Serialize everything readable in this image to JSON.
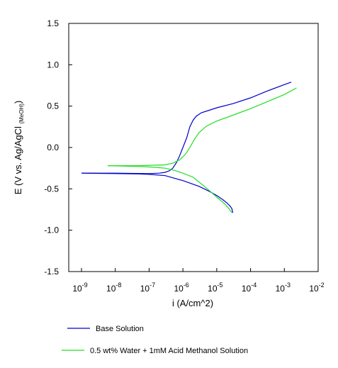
{
  "chart_data": {
    "type": "line",
    "xlabel": "i (A/cm^2)",
    "ylabel_main": "E  (V vs. Ag/AgCl ",
    "ylabel_sub": "(MeOH)",
    "ylabel_close": ")",
    "xscale": "log",
    "xlim": [
      1e-09,
      0.01
    ],
    "ylim": [
      -1.5,
      1.5
    ],
    "y_ticks": [
      "1.5",
      "1.0",
      "0.5",
      "0.0",
      "-0.5",
      "-1.0",
      "-1.5"
    ],
    "x_ticks": [
      {
        "base": "10",
        "exp": "-9"
      },
      {
        "base": "10",
        "exp": "-8"
      },
      {
        "base": "10",
        "exp": "-7"
      },
      {
        "base": "10",
        "exp": "-6"
      },
      {
        "base": "10",
        "exp": "-5"
      },
      {
        "base": "10",
        "exp": "-4"
      },
      {
        "base": "10",
        "exp": "-3"
      },
      {
        "base": "10",
        "exp": "-2"
      }
    ],
    "grid": false,
    "legend_position": "bottom",
    "series": [
      {
        "name": "Base Solution",
        "color": "#0000cc",
        "points": [
          [
            1e-09,
            -0.31
          ],
          [
            1e-08,
            -0.31
          ],
          [
            1e-07,
            -0.315
          ],
          [
            2e-07,
            -0.31
          ],
          [
            3e-07,
            -0.3
          ],
          [
            4e-07,
            -0.28
          ],
          [
            5e-07,
            -0.25
          ],
          [
            6.5e-07,
            -0.18
          ],
          [
            8e-07,
            -0.1
          ],
          [
            1e-06,
            0.0
          ],
          [
            1.3e-06,
            0.12
          ],
          [
            1.6e-06,
            0.25
          ],
          [
            2e-06,
            0.33
          ],
          [
            2.5e-06,
            0.38
          ],
          [
            3.5e-06,
            0.42
          ],
          [
            6e-06,
            0.45
          ],
          [
            1e-05,
            0.48
          ],
          [
            3e-05,
            0.53
          ],
          [
            0.0001,
            0.6
          ],
          [
            0.0003,
            0.68
          ],
          [
            0.001,
            0.76
          ],
          [
            0.0016,
            0.79
          ]
        ],
        "points_b": [
          [
            1e-09,
            -0.31
          ],
          [
            1e-08,
            -0.315
          ],
          [
            5e-08,
            -0.32
          ],
          [
            1e-07,
            -0.325
          ],
          [
            3e-07,
            -0.34
          ],
          [
            1e-06,
            -0.4
          ],
          [
            3e-06,
            -0.47
          ],
          [
            6e-06,
            -0.53
          ],
          [
            1e-05,
            -0.58
          ],
          [
            1.5e-05,
            -0.63
          ],
          [
            2e-05,
            -0.67
          ],
          [
            2.5e-05,
            -0.71
          ],
          [
            2.8e-05,
            -0.74
          ],
          [
            3e-05,
            -0.79
          ]
        ]
      },
      {
        "name": "0.5 wt% Water + 1mM Acid Methanol Solution",
        "color": "#22dd22",
        "points": [
          [
            6e-09,
            -0.22
          ],
          [
            5e-08,
            -0.22
          ],
          [
            1e-07,
            -0.215
          ],
          [
            3e-07,
            -0.21
          ],
          [
            5e-07,
            -0.19
          ],
          [
            8e-07,
            -0.15
          ],
          [
            1.2e-06,
            -0.08
          ],
          [
            1.6e-06,
            0.0
          ],
          [
            2.2e-06,
            0.1
          ],
          [
            3e-06,
            0.18
          ],
          [
            5e-06,
            0.26
          ],
          [
            1e-05,
            0.32
          ],
          [
            3e-05,
            0.39
          ],
          [
            0.0001,
            0.47
          ],
          [
            0.0003,
            0.55
          ],
          [
            0.001,
            0.64
          ],
          [
            0.0023,
            0.72
          ]
        ],
        "points_b": [
          [
            6e-09,
            -0.22
          ],
          [
            5e-08,
            -0.23
          ],
          [
            1e-07,
            -0.235
          ],
          [
            3e-07,
            -0.25
          ],
          [
            6e-07,
            -0.28
          ],
          [
            1e-06,
            -0.31
          ],
          [
            2e-06,
            -0.36
          ],
          [
            3.5e-06,
            -0.44
          ],
          [
            6e-06,
            -0.52
          ],
          [
            1e-05,
            -0.6
          ],
          [
            1.7e-05,
            -0.68
          ],
          [
            2.3e-05,
            -0.74
          ],
          [
            2.8e-05,
            -0.79
          ]
        ]
      }
    ]
  }
}
